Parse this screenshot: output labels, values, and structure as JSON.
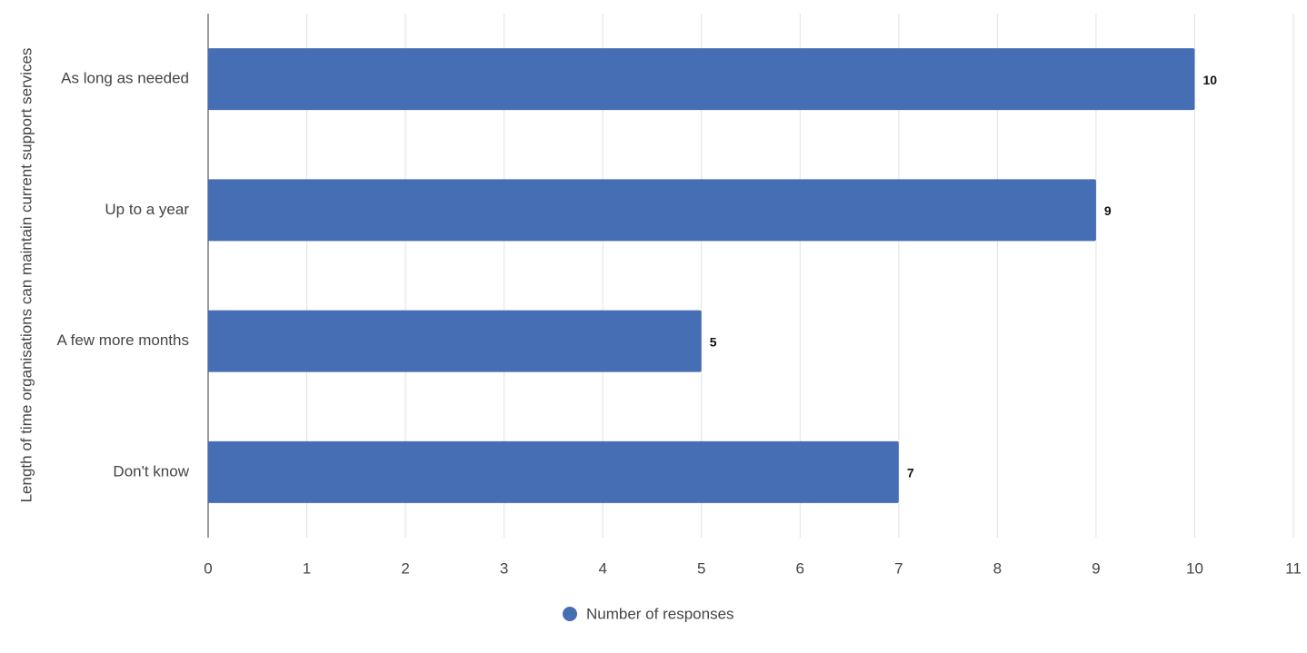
{
  "chart_data": {
    "type": "bar",
    "orientation": "horizontal",
    "y_label": "Length of time organisations can maintain current support services",
    "categories": [
      "As long as needed",
      "Up to a year",
      "A few more months",
      "Don't know"
    ],
    "series": [
      {
        "name": "Number of responses",
        "color": "#466eb4",
        "values": [
          10,
          9,
          5,
          7
        ]
      }
    ],
    "xlim": [
      0,
      11
    ],
    "xticks": [
      0,
      1,
      2,
      3,
      4,
      5,
      6,
      7,
      8,
      9,
      10,
      11
    ],
    "grid": true,
    "legend": "bottom"
  }
}
